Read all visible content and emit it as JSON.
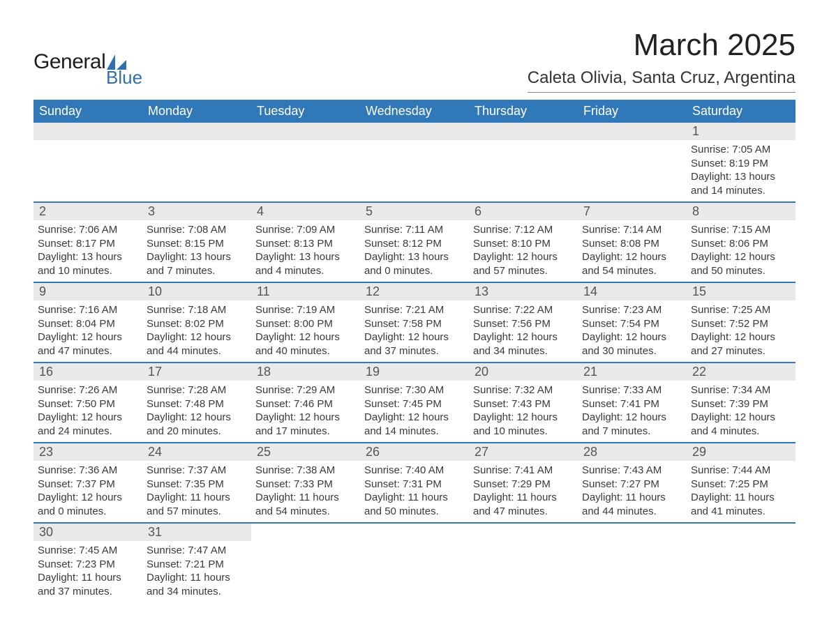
{
  "brand": {
    "general": "General",
    "blue": "Blue",
    "logo_color": "#2f6faf"
  },
  "title": "March 2025",
  "location": "Caleta Olivia, Santa Cruz, Argentina",
  "colors": {
    "header_bg": "#3178b8",
    "header_text": "#ffffff",
    "daybar_bg": "#e9e9e9",
    "row_border": "#3178b8",
    "text": "#3a3a3a",
    "page_bg": "#ffffff"
  },
  "day_names": [
    "Sunday",
    "Monday",
    "Tuesday",
    "Wednesday",
    "Thursday",
    "Friday",
    "Saturday"
  ],
  "weeks": [
    [
      {
        "day": "",
        "lines": [
          "",
          "",
          "",
          ""
        ]
      },
      {
        "day": "",
        "lines": [
          "",
          "",
          "",
          ""
        ]
      },
      {
        "day": "",
        "lines": [
          "",
          "",
          "",
          ""
        ]
      },
      {
        "day": "",
        "lines": [
          "",
          "",
          "",
          ""
        ]
      },
      {
        "day": "",
        "lines": [
          "",
          "",
          "",
          ""
        ]
      },
      {
        "day": "",
        "lines": [
          "",
          "",
          "",
          ""
        ]
      },
      {
        "day": "1",
        "lines": [
          "Sunrise: 7:05 AM",
          "Sunset: 8:19 PM",
          "Daylight: 13 hours",
          "and 14 minutes."
        ]
      }
    ],
    [
      {
        "day": "2",
        "lines": [
          "Sunrise: 7:06 AM",
          "Sunset: 8:17 PM",
          "Daylight: 13 hours",
          "and 10 minutes."
        ]
      },
      {
        "day": "3",
        "lines": [
          "Sunrise: 7:08 AM",
          "Sunset: 8:15 PM",
          "Daylight: 13 hours",
          "and 7 minutes."
        ]
      },
      {
        "day": "4",
        "lines": [
          "Sunrise: 7:09 AM",
          "Sunset: 8:13 PM",
          "Daylight: 13 hours",
          "and 4 minutes."
        ]
      },
      {
        "day": "5",
        "lines": [
          "Sunrise: 7:11 AM",
          "Sunset: 8:12 PM",
          "Daylight: 13 hours",
          "and 0 minutes."
        ]
      },
      {
        "day": "6",
        "lines": [
          "Sunrise: 7:12 AM",
          "Sunset: 8:10 PM",
          "Daylight: 12 hours",
          "and 57 minutes."
        ]
      },
      {
        "day": "7",
        "lines": [
          "Sunrise: 7:14 AM",
          "Sunset: 8:08 PM",
          "Daylight: 12 hours",
          "and 54 minutes."
        ]
      },
      {
        "day": "8",
        "lines": [
          "Sunrise: 7:15 AM",
          "Sunset: 8:06 PM",
          "Daylight: 12 hours",
          "and 50 minutes."
        ]
      }
    ],
    [
      {
        "day": "9",
        "lines": [
          "Sunrise: 7:16 AM",
          "Sunset: 8:04 PM",
          "Daylight: 12 hours",
          "and 47 minutes."
        ]
      },
      {
        "day": "10",
        "lines": [
          "Sunrise: 7:18 AM",
          "Sunset: 8:02 PM",
          "Daylight: 12 hours",
          "and 44 minutes."
        ]
      },
      {
        "day": "11",
        "lines": [
          "Sunrise: 7:19 AM",
          "Sunset: 8:00 PM",
          "Daylight: 12 hours",
          "and 40 minutes."
        ]
      },
      {
        "day": "12",
        "lines": [
          "Sunrise: 7:21 AM",
          "Sunset: 7:58 PM",
          "Daylight: 12 hours",
          "and 37 minutes."
        ]
      },
      {
        "day": "13",
        "lines": [
          "Sunrise: 7:22 AM",
          "Sunset: 7:56 PM",
          "Daylight: 12 hours",
          "and 34 minutes."
        ]
      },
      {
        "day": "14",
        "lines": [
          "Sunrise: 7:23 AM",
          "Sunset: 7:54 PM",
          "Daylight: 12 hours",
          "and 30 minutes."
        ]
      },
      {
        "day": "15",
        "lines": [
          "Sunrise: 7:25 AM",
          "Sunset: 7:52 PM",
          "Daylight: 12 hours",
          "and 27 minutes."
        ]
      }
    ],
    [
      {
        "day": "16",
        "lines": [
          "Sunrise: 7:26 AM",
          "Sunset: 7:50 PM",
          "Daylight: 12 hours",
          "and 24 minutes."
        ]
      },
      {
        "day": "17",
        "lines": [
          "Sunrise: 7:28 AM",
          "Sunset: 7:48 PM",
          "Daylight: 12 hours",
          "and 20 minutes."
        ]
      },
      {
        "day": "18",
        "lines": [
          "Sunrise: 7:29 AM",
          "Sunset: 7:46 PM",
          "Daylight: 12 hours",
          "and 17 minutes."
        ]
      },
      {
        "day": "19",
        "lines": [
          "Sunrise: 7:30 AM",
          "Sunset: 7:45 PM",
          "Daylight: 12 hours",
          "and 14 minutes."
        ]
      },
      {
        "day": "20",
        "lines": [
          "Sunrise: 7:32 AM",
          "Sunset: 7:43 PM",
          "Daylight: 12 hours",
          "and 10 minutes."
        ]
      },
      {
        "day": "21",
        "lines": [
          "Sunrise: 7:33 AM",
          "Sunset: 7:41 PM",
          "Daylight: 12 hours",
          "and 7 minutes."
        ]
      },
      {
        "day": "22",
        "lines": [
          "Sunrise: 7:34 AM",
          "Sunset: 7:39 PM",
          "Daylight: 12 hours",
          "and 4 minutes."
        ]
      }
    ],
    [
      {
        "day": "23",
        "lines": [
          "Sunrise: 7:36 AM",
          "Sunset: 7:37 PM",
          "Daylight: 12 hours",
          "and 0 minutes."
        ]
      },
      {
        "day": "24",
        "lines": [
          "Sunrise: 7:37 AM",
          "Sunset: 7:35 PM",
          "Daylight: 11 hours",
          "and 57 minutes."
        ]
      },
      {
        "day": "25",
        "lines": [
          "Sunrise: 7:38 AM",
          "Sunset: 7:33 PM",
          "Daylight: 11 hours",
          "and 54 minutes."
        ]
      },
      {
        "day": "26",
        "lines": [
          "Sunrise: 7:40 AM",
          "Sunset: 7:31 PM",
          "Daylight: 11 hours",
          "and 50 minutes."
        ]
      },
      {
        "day": "27",
        "lines": [
          "Sunrise: 7:41 AM",
          "Sunset: 7:29 PM",
          "Daylight: 11 hours",
          "and 47 minutes."
        ]
      },
      {
        "day": "28",
        "lines": [
          "Sunrise: 7:43 AM",
          "Sunset: 7:27 PM",
          "Daylight: 11 hours",
          "and 44 minutes."
        ]
      },
      {
        "day": "29",
        "lines": [
          "Sunrise: 7:44 AM",
          "Sunset: 7:25 PM",
          "Daylight: 11 hours",
          "and 41 minutes."
        ]
      }
    ],
    [
      {
        "day": "30",
        "lines": [
          "Sunrise: 7:45 AM",
          "Sunset: 7:23 PM",
          "Daylight: 11 hours",
          "and 37 minutes."
        ]
      },
      {
        "day": "31",
        "lines": [
          "Sunrise: 7:47 AM",
          "Sunset: 7:21 PM",
          "Daylight: 11 hours",
          "and 34 minutes."
        ]
      },
      {
        "day": "",
        "lines": [
          "",
          "",
          "",
          ""
        ]
      },
      {
        "day": "",
        "lines": [
          "",
          "",
          "",
          ""
        ]
      },
      {
        "day": "",
        "lines": [
          "",
          "",
          "",
          ""
        ]
      },
      {
        "day": "",
        "lines": [
          "",
          "",
          "",
          ""
        ]
      },
      {
        "day": "",
        "lines": [
          "",
          "",
          "",
          ""
        ]
      }
    ]
  ]
}
